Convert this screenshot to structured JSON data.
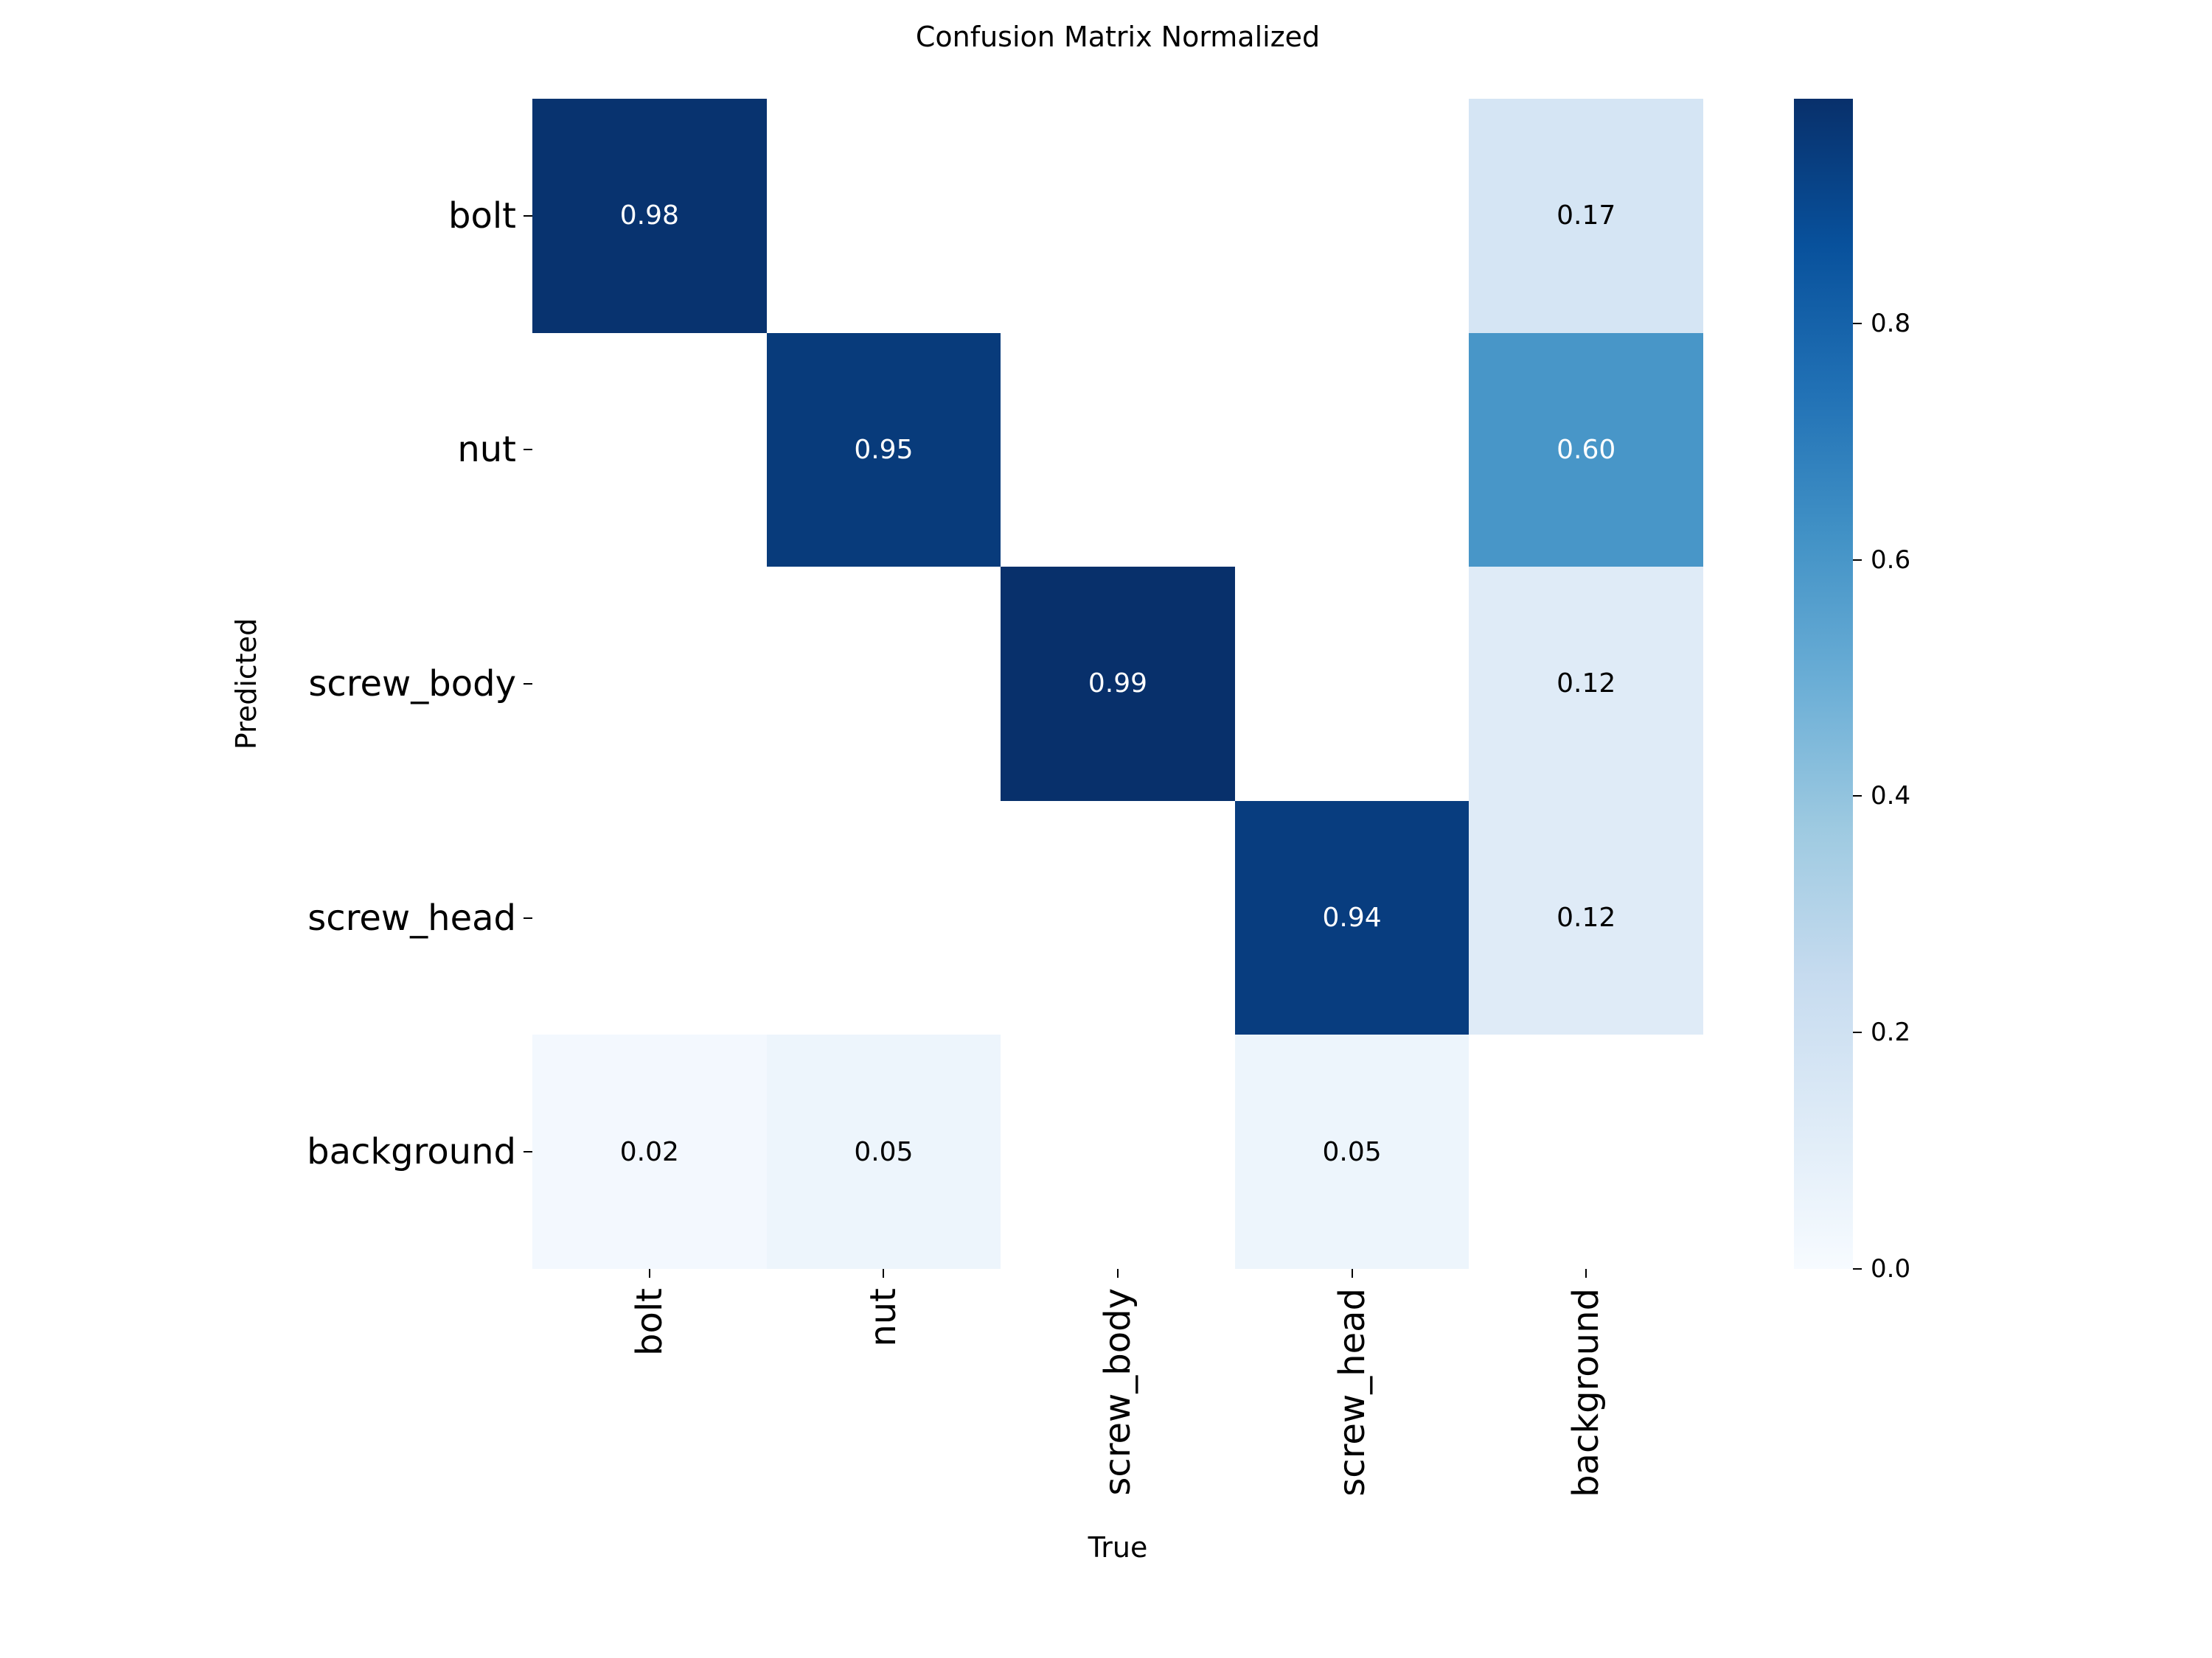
{
  "chart_data": {
    "type": "heatmap",
    "title": "Confusion Matrix Normalized",
    "xlabel": "True",
    "ylabel": "Predicted",
    "x_categories": [
      "bolt",
      "nut",
      "screw_body",
      "screw_head",
      "background"
    ],
    "y_categories": [
      "bolt",
      "nut",
      "screw_body",
      "screw_head",
      "background"
    ],
    "matrix": [
      [
        0.98,
        null,
        null,
        null,
        0.17
      ],
      [
        null,
        0.95,
        null,
        null,
        0.6
      ],
      [
        null,
        null,
        0.99,
        null,
        0.12
      ],
      [
        null,
        null,
        null,
        0.94,
        0.12
      ],
      [
        0.02,
        0.05,
        null,
        0.05,
        null
      ]
    ],
    "value_decimals": 2,
    "vmin": 0.0,
    "vmax": 0.99,
    "colormap": "Blues",
    "colormap_stops": [
      "#f7fbff",
      "#deebf7",
      "#c6dbef",
      "#9ecae1",
      "#6baed6",
      "#4292c6",
      "#2171b5",
      "#08519c",
      "#08306b"
    ],
    "blank_cell_color": "#ffffff",
    "annotation_text_light": "#ffffff",
    "annotation_text_dark": "#000000",
    "colorbar": {
      "tick_labels": [
        "0.0",
        "0.2",
        "0.4",
        "0.6",
        "0.8"
      ],
      "tick_values": [
        0.0,
        0.2,
        0.4,
        0.6,
        0.8
      ],
      "legend_position": "right"
    },
    "grid": false
  }
}
